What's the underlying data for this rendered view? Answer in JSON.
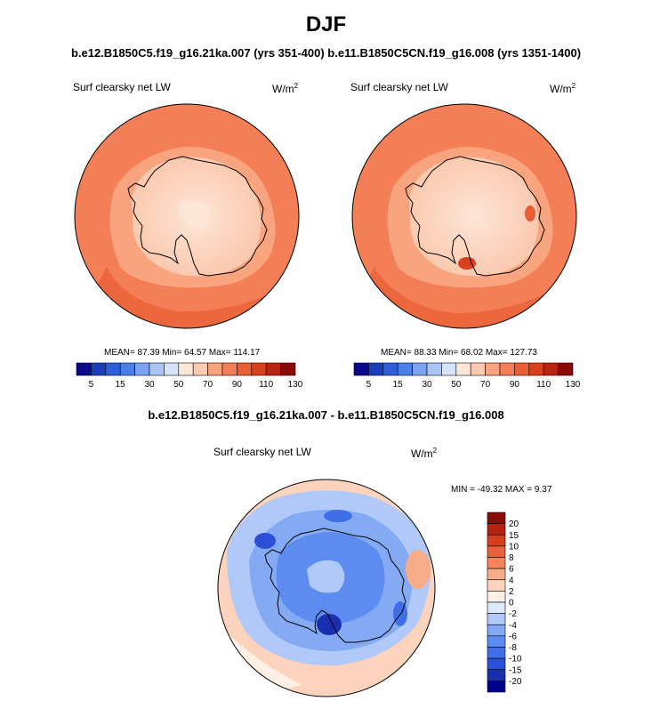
{
  "title": "DJF",
  "subtitle": "b.e12.B1850C5.f19_g16.21ka.007 (yrs 351-400) b.e11.B1850C5CN.f19_g16.008 (yrs 1351-1400)",
  "diff_title": "b.e12.B1850C5.f19_g16.21ka.007 - b.e11.B1850C5CN.f19_g16.008",
  "panels": [
    {
      "variable": "Surf clearsky net LW",
      "unit_base": "W/m",
      "unit_exp": "2",
      "stats": "MEAN=  87.39  Min=  64.57  Max=  114.17"
    },
    {
      "variable": "Surf clearsky net LW",
      "unit_base": "W/m",
      "unit_exp": "2",
      "stats": "MEAN=  88.33  Min=  68.02  Max=  127.73"
    },
    {
      "variable": "Surf clearsky net LW",
      "unit_base": "W/m",
      "unit_exp": "2",
      "stats": "MIN = -49.32 MAX =   9.37"
    }
  ],
  "abs_colorbar": {
    "colors": [
      "#0a0a8c",
      "#1b3fb8",
      "#2f5fd8",
      "#4a7fe8",
      "#7ba3f0",
      "#a9c4f5",
      "#d6e4fa",
      "#fde6d8",
      "#fbcab0",
      "#f8a57f",
      "#f47e56",
      "#ea5e35",
      "#d9401e",
      "#b8240f",
      "#8b0a05"
    ],
    "labels": [
      "5",
      "15",
      "30",
      "50",
      "70",
      "90",
      "110",
      "130"
    ]
  },
  "diff_colorbar": {
    "colors": [
      "#00008b",
      "#1a2fb0",
      "#2b4fd6",
      "#3f6ee6",
      "#5c8cef",
      "#85aaf4",
      "#b0c9f8",
      "#dde9fc",
      "#fff0e6",
      "#fcd3bc",
      "#f8ad8a",
      "#f3855e",
      "#e9613a",
      "#d63f1e",
      "#b7220f",
      "#8a0c07"
    ],
    "labels": [
      "20",
      "15",
      "10",
      "8",
      "6",
      "4",
      "2",
      "0",
      "-2",
      "-4",
      "-6",
      "-8",
      "-10",
      "-15",
      "-20"
    ]
  }
}
